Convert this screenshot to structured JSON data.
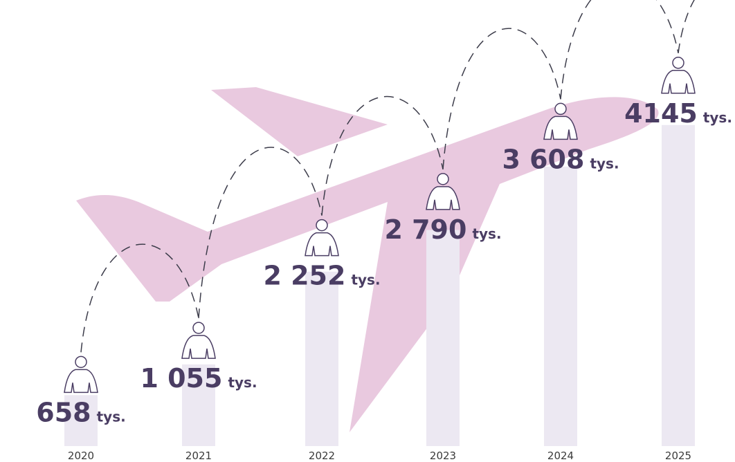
{
  "chart_data": {
    "type": "bar",
    "categories": [
      "2020",
      "2021",
      "2022",
      "2023",
      "2024",
      "2025"
    ],
    "values": [
      658,
      1055,
      2252,
      2790,
      3608,
      4145
    ],
    "value_labels": [
      "658",
      "1 055",
      "2 252",
      "2 790",
      "3 608",
      "4145"
    ],
    "unit_label": "tys.",
    "color": "#ece8f2"
  }
}
